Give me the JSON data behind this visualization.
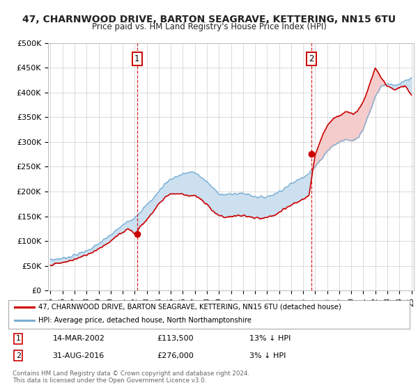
{
  "title": "47, CHARNWOOD DRIVE, BARTON SEAGRAVE, KETTERING, NN15 6TU",
  "subtitle": "Price paid vs. HM Land Registry's House Price Index (HPI)",
  "ylabel_ticks": [
    "£0",
    "£50K",
    "£100K",
    "£150K",
    "£200K",
    "£250K",
    "£300K",
    "£350K",
    "£400K",
    "£450K",
    "£500K"
  ],
  "ytick_values": [
    0,
    50000,
    100000,
    150000,
    200000,
    250000,
    300000,
    350000,
    400000,
    450000,
    500000
  ],
  "ylim": [
    0,
    500000
  ],
  "sale1_x": 2002.2,
  "sale1_price": 113500,
  "sale2_x": 2016.67,
  "sale2_price": 276000,
  "sale1_date_str": "14-MAR-2002",
  "sale1_price_str": "£113,500",
  "sale1_hpi_str": "13% ↓ HPI",
  "sale2_date_str": "31-AUG-2016",
  "sale2_price_str": "£276,000",
  "sale2_hpi_str": "3% ↓ HPI",
  "legend_red_label": "47, CHARNWOOD DRIVE, BARTON SEAGRAVE, KETTERING, NN15 6TU (detached house)",
  "legend_blue_label": "HPI: Average price, detached house, North Northamptonshire",
  "footnote": "Contains HM Land Registry data © Crown copyright and database right 2024.\nThis data is licensed under the Open Government Licence v3.0.",
  "red_color": "#cc0000",
  "blue_color": "#7aafd4",
  "fill_blue_color": "#cce0f0",
  "fill_red_color": "#f5cccc",
  "grid_color": "#cccccc",
  "background_color": "#ffffff",
  "years": [
    1995.0,
    1995.5,
    1996.0,
    1996.5,
    1997.0,
    1997.5,
    1998.0,
    1998.5,
    1999.0,
    1999.5,
    2000.0,
    2000.5,
    2001.0,
    2001.5,
    2002.0,
    2002.5,
    2003.0,
    2003.5,
    2004.0,
    2004.5,
    2005.0,
    2005.5,
    2006.0,
    2006.5,
    2007.0,
    2007.5,
    2008.0,
    2008.5,
    2009.0,
    2009.5,
    2010.0,
    2010.5,
    2011.0,
    2011.5,
    2012.0,
    2012.5,
    2013.0,
    2013.5,
    2014.0,
    2014.5,
    2015.0,
    2015.5,
    2016.0,
    2016.5,
    2017.0,
    2017.5,
    2018.0,
    2018.5,
    2019.0,
    2019.5,
    2020.0,
    2020.5,
    2021.0,
    2021.5,
    2022.0,
    2022.5,
    2023.0,
    2023.5,
    2024.0,
    2024.5,
    2025.0
  ],
  "hpi_values": [
    62000,
    63500,
    65000,
    68000,
    72000,
    76000,
    81000,
    87000,
    95000,
    103000,
    112000,
    122000,
    132000,
    140000,
    148000,
    160000,
    172000,
    185000,
    200000,
    215000,
    225000,
    230000,
    235000,
    238000,
    238000,
    230000,
    220000,
    208000,
    198000,
    195000,
    196000,
    198000,
    198000,
    196000,
    192000,
    190000,
    192000,
    196000,
    202000,
    210000,
    218000,
    225000,
    232000,
    240000,
    252000,
    268000,
    285000,
    295000,
    302000,
    308000,
    305000,
    310000,
    330000,
    360000,
    395000,
    415000,
    420000,
    415000,
    418000,
    425000,
    430000
  ],
  "price_values": [
    52000,
    54000,
    56000,
    59000,
    63000,
    67000,
    72000,
    78000,
    85000,
    92000,
    100000,
    109000,
    118000,
    126000,
    113500,
    130000,
    142000,
    158000,
    175000,
    188000,
    196000,
    196000,
    195000,
    192000,
    192000,
    184000,
    174000,
    162000,
    152000,
    149000,
    150000,
    152000,
    152000,
    150000,
    147000,
    146000,
    148000,
    152000,
    158000,
    166000,
    174000,
    180000,
    186000,
    193000,
    276000,
    310000,
    335000,
    348000,
    356000,
    362000,
    358000,
    362000,
    382000,
    415000,
    450000,
    430000,
    415000,
    408000,
    410000,
    415000,
    395000
  ]
}
